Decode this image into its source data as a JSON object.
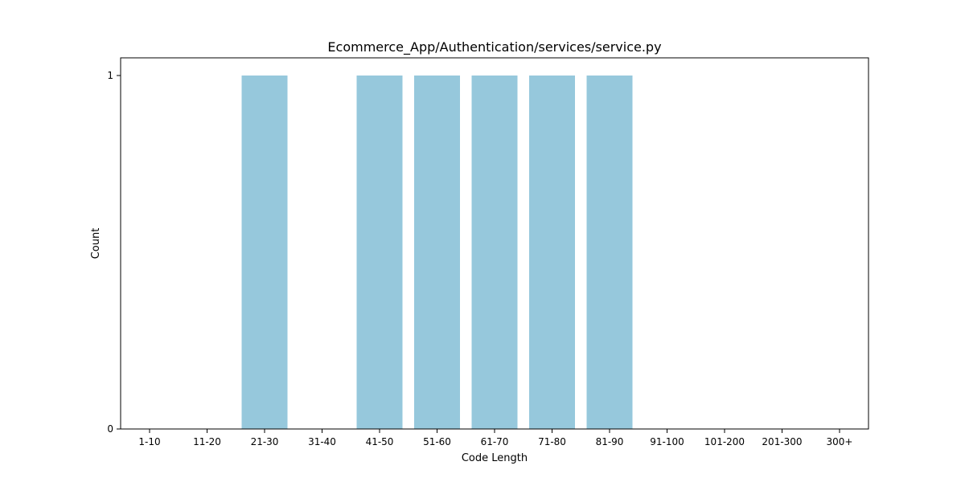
{
  "chart_data": {
    "type": "bar",
    "title": "Ecommerce_App/Authentication/services/service.py",
    "xlabel": "Code Length",
    "ylabel": "Count",
    "categories": [
      "1-10",
      "11-20",
      "21-30",
      "31-40",
      "41-50",
      "51-60",
      "61-70",
      "71-80",
      "81-90",
      "91-100",
      "101-200",
      "201-300",
      "300+"
    ],
    "values": [
      0,
      0,
      1,
      0,
      1,
      1,
      1,
      1,
      1,
      0,
      0,
      0,
      0
    ],
    "ylim": [
      0,
      1.05
    ],
    "yticks": [
      "0",
      "1"
    ],
    "grid": false,
    "bar_color": "#96c8dc"
  }
}
